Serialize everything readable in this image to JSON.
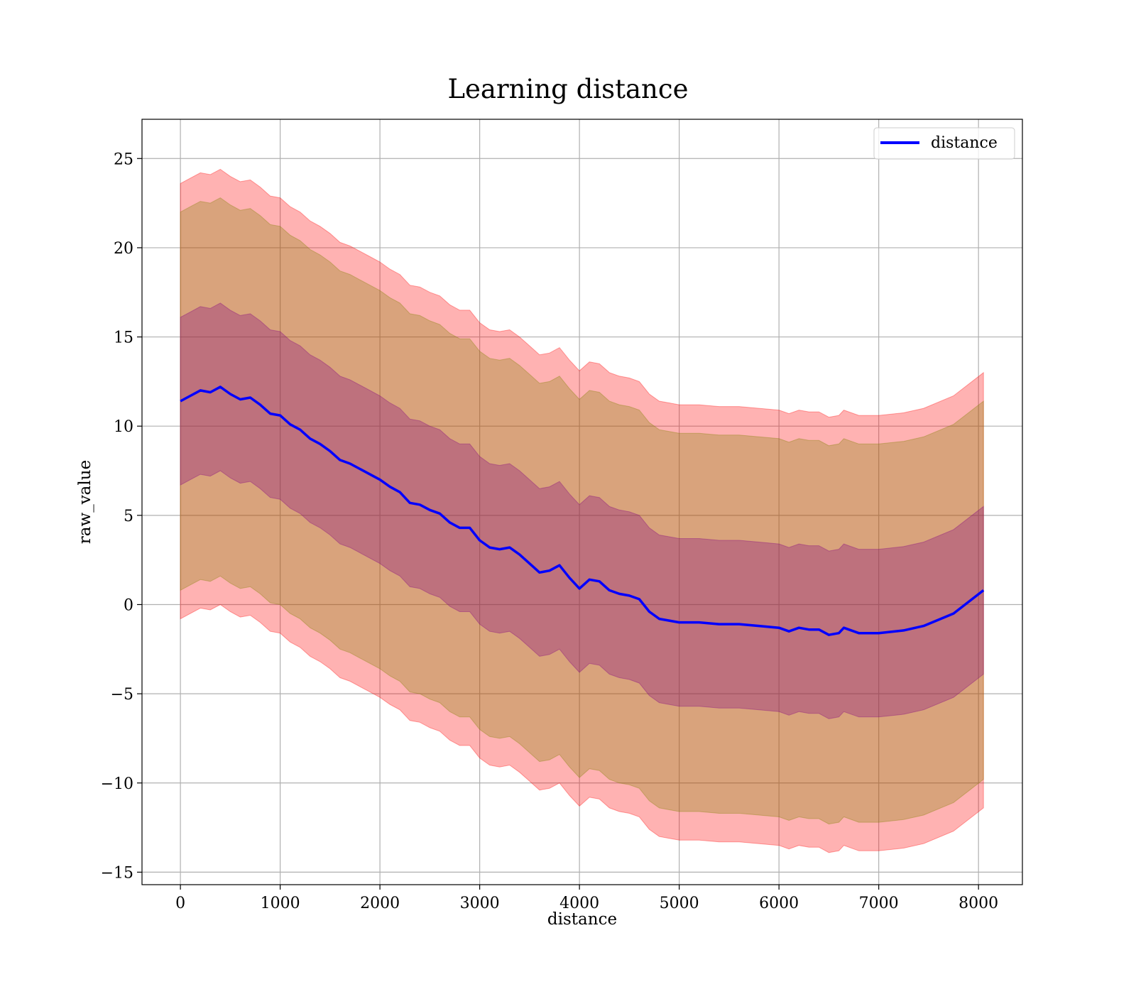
{
  "chart_data": {
    "type": "line",
    "title": "Learning distance",
    "xlabel": "distance",
    "ylabel": "raw_value",
    "xlim": [
      -385,
      8440
    ],
    "ylim": [
      -15.7,
      27.2
    ],
    "xticks": [
      0,
      1000,
      2000,
      3000,
      4000,
      5000,
      6000,
      7000,
      8000
    ],
    "yticks": [
      -15,
      -10,
      -5,
      0,
      5,
      10,
      15,
      20,
      25
    ],
    "grid": true,
    "legend_position": "top-right",
    "series": [
      {
        "name": "distance",
        "color": "#0000ff",
        "x": [
          0,
          100,
          200,
          300,
          400,
          500,
          600,
          700,
          800,
          900,
          1000,
          1100,
          1200,
          1300,
          1400,
          1500,
          1600,
          1700,
          1800,
          1900,
          2000,
          2100,
          2200,
          2300,
          2400,
          2500,
          2600,
          2700,
          2800,
          2900,
          3000,
          3100,
          3200,
          3300,
          3400,
          3500,
          3600,
          3700,
          3800,
          3900,
          4000,
          4100,
          4200,
          4300,
          4400,
          4500,
          4600,
          4700,
          4800,
          4900,
          5000,
          5200,
          5400,
          5600,
          5800,
          6000,
          6100,
          6200,
          6300,
          6400,
          6500,
          6600,
          6650,
          6700,
          6800,
          6900,
          7000,
          7250,
          7450,
          7750,
          8050
        ],
        "y": [
          11.4,
          11.7,
          12.0,
          11.9,
          12.2,
          11.8,
          11.5,
          11.6,
          11.2,
          10.7,
          10.6,
          10.1,
          9.8,
          9.3,
          9.0,
          8.6,
          8.1,
          7.9,
          7.6,
          7.3,
          7.0,
          6.6,
          6.3,
          5.7,
          5.6,
          5.3,
          5.1,
          4.6,
          4.3,
          4.3,
          3.6,
          3.2,
          3.1,
          3.2,
          2.8,
          2.3,
          1.8,
          1.9,
          2.2,
          1.5,
          0.9,
          1.4,
          1.3,
          0.8,
          0.6,
          0.5,
          0.3,
          -0.4,
          -0.8,
          -0.9,
          -1.0,
          -1.0,
          -1.1,
          -1.1,
          -1.2,
          -1.3,
          -1.5,
          -1.3,
          -1.4,
          -1.4,
          -1.7,
          -1.6,
          -1.3,
          -1.4,
          -1.6,
          -1.6,
          -1.6,
          -1.45,
          -1.2,
          -0.5,
          0.8
        ]
      }
    ],
    "bands": [
      {
        "role": "outer",
        "color": "#ff0000",
        "opacity": 0.3,
        "half_width": 12.2
      },
      {
        "role": "middle",
        "color": "#808000",
        "opacity": 0.3,
        "half_width": 10.6
      },
      {
        "role": "inner",
        "color": "#800080",
        "opacity": 0.3,
        "half_width": 4.7
      }
    ]
  }
}
